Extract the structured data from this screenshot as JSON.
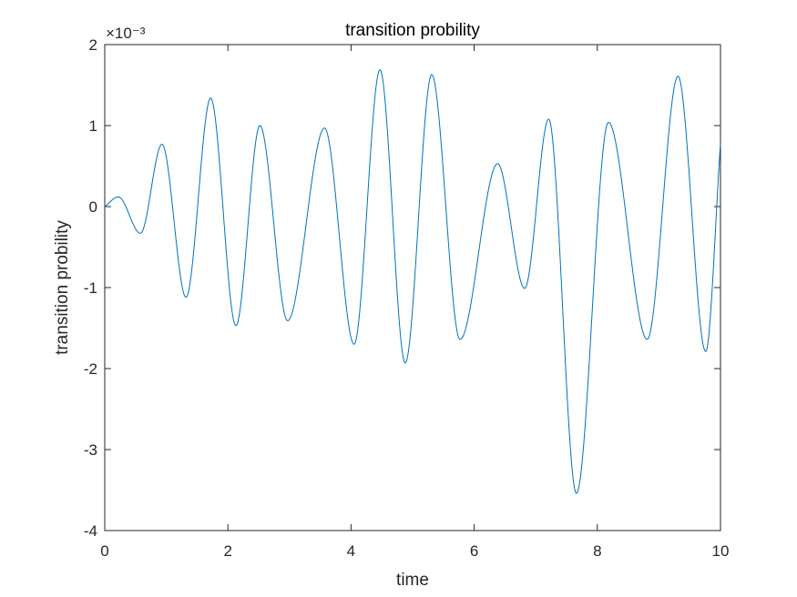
{
  "chart_data": {
    "type": "line",
    "title": "transition probility",
    "xlabel": "time",
    "ylabel": "transition probility",
    "xlim": [
      0,
      10
    ],
    "ylim": [
      -4,
      2
    ],
    "xticks": [
      0,
      2,
      4,
      6,
      8,
      10
    ],
    "yticks": [
      -4,
      -3,
      -2,
      -1,
      0,
      1,
      2
    ],
    "y_exponent_label": "×10⁻³",
    "grid": false,
    "legend": "none",
    "line_color": "#0072BD",
    "series": [
      {
        "name": "transition probility",
        "x": [
          0,
          0.22,
          0.58,
          0.93,
          1.32,
          1.72,
          2.13,
          2.52,
          2.97,
          3.57,
          4.05,
          4.47,
          4.88,
          5.31,
          5.77,
          6.38,
          6.82,
          7.21,
          7.66,
          8.18,
          8.81,
          9.31,
          9.76,
          10
        ],
        "y": [
          0,
          0.12,
          -0.33,
          0.77,
          -1.12,
          1.34,
          -1.47,
          1.0,
          -1.41,
          0.97,
          -1.7,
          1.69,
          -1.93,
          1.63,
          -1.64,
          0.53,
          -1.01,
          1.08,
          -3.54,
          1.04,
          -1.64,
          1.61,
          -1.79,
          0.78
        ]
      }
    ]
  },
  "colors": {
    "axis": "#262626",
    "line": "#0072BD",
    "background": "#ffffff"
  }
}
